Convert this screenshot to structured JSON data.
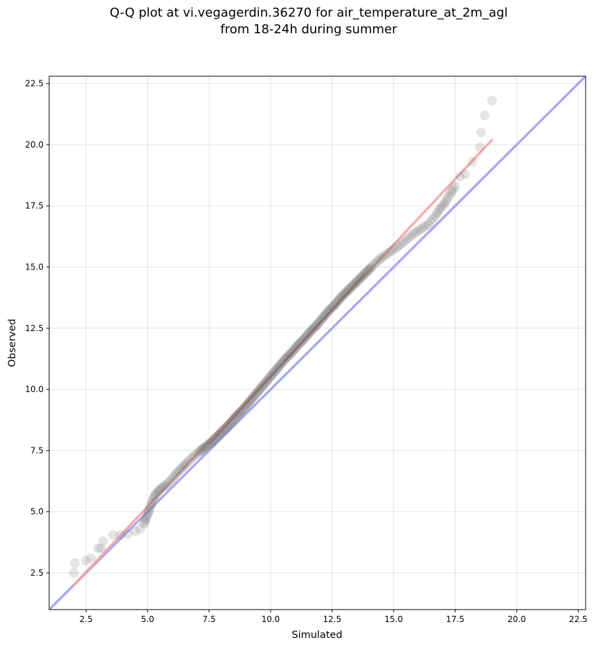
{
  "chart_data": {
    "type": "scatter",
    "title_line1": "Q-Q plot at vi.vegagerdin.36270 for air_temperature_at_2m_agl",
    "title_line2": "from 18-24h during summer",
    "xlabel": "Simulated",
    "ylabel": "Observed",
    "xlim": [
      1.0,
      22.8
    ],
    "ylim": [
      1.0,
      22.8
    ],
    "xticks": [
      2.5,
      5.0,
      7.5,
      10.0,
      12.5,
      15.0,
      17.5,
      20.0,
      22.5
    ],
    "yticks": [
      2.5,
      5.0,
      7.5,
      10.0,
      12.5,
      15.0,
      17.5,
      20.0,
      22.5
    ],
    "xtick_labels": [
      "2.5",
      "5.0",
      "7.5",
      "10.0",
      "12.5",
      "15.0",
      "17.5",
      "20.0",
      "22.5"
    ],
    "ytick_labels": [
      "2.5",
      "5.0",
      "7.5",
      "10.0",
      "12.5",
      "15.0",
      "17.5",
      "20.0",
      "22.5"
    ],
    "grid": true,
    "reference_line": {
      "name": "1:1",
      "x": [
        1.0,
        22.8
      ],
      "y": [
        1.0,
        22.8
      ],
      "color": "#a8a8f5"
    },
    "fit_line": {
      "x": [
        2.0,
        19.0
      ],
      "y": [
        2.0,
        20.2
      ],
      "color": "#f5a3a3"
    },
    "points_color": "#777777",
    "points": [
      [
        2.0,
        2.5
      ],
      [
        2.05,
        2.9
      ],
      [
        2.5,
        3.0
      ],
      [
        2.7,
        3.1
      ],
      [
        3.0,
        3.5
      ],
      [
        3.1,
        3.5
      ],
      [
        3.2,
        3.8
      ],
      [
        3.6,
        4.05
      ],
      [
        3.9,
        4.05
      ],
      [
        4.2,
        4.1
      ],
      [
        4.5,
        4.2
      ],
      [
        4.7,
        4.3
      ],
      [
        4.85,
        4.5
      ],
      [
        4.95,
        4.75
      ],
      [
        5.05,
        5.0
      ],
      [
        5.15,
        5.3
      ],
      [
        5.25,
        5.6
      ],
      [
        5.4,
        5.8
      ],
      [
        5.55,
        5.95
      ],
      [
        5.75,
        6.1
      ],
      [
        6.0,
        6.35
      ],
      [
        6.2,
        6.6
      ],
      [
        6.4,
        6.8
      ],
      [
        6.6,
        7.0
      ],
      [
        6.85,
        7.25
      ],
      [
        7.1,
        7.45
      ],
      [
        7.35,
        7.65
      ],
      [
        7.6,
        7.85
      ],
      [
        7.85,
        8.1
      ],
      [
        8.1,
        8.35
      ],
      [
        8.35,
        8.6
      ],
      [
        8.6,
        8.9
      ],
      [
        8.85,
        9.15
      ],
      [
        9.1,
        9.45
      ],
      [
        9.35,
        9.75
      ],
      [
        9.6,
        10.05
      ],
      [
        9.85,
        10.35
      ],
      [
        10.1,
        10.65
      ],
      [
        10.35,
        10.95
      ],
      [
        10.6,
        11.25
      ],
      [
        10.85,
        11.5
      ],
      [
        11.1,
        11.8
      ],
      [
        11.35,
        12.05
      ],
      [
        11.6,
        12.35
      ],
      [
        11.85,
        12.6
      ],
      [
        12.1,
        12.9
      ],
      [
        12.35,
        13.2
      ],
      [
        12.6,
        13.45
      ],
      [
        12.85,
        13.75
      ],
      [
        13.1,
        14.0
      ],
      [
        13.35,
        14.25
      ],
      [
        13.6,
        14.5
      ],
      [
        13.85,
        14.75
      ],
      [
        14.1,
        15.0
      ],
      [
        14.35,
        15.25
      ],
      [
        14.6,
        15.45
      ],
      [
        14.9,
        15.65
      ],
      [
        15.2,
        15.85
      ],
      [
        15.5,
        16.1
      ],
      [
        15.8,
        16.35
      ],
      [
        16.1,
        16.55
      ],
      [
        16.4,
        16.75
      ],
      [
        16.7,
        17.1
      ],
      [
        16.9,
        17.4
      ],
      [
        17.1,
        17.65
      ],
      [
        17.3,
        18.0
      ],
      [
        17.5,
        18.3
      ],
      [
        17.7,
        18.7
      ],
      [
        17.9,
        18.8
      ],
      [
        18.2,
        19.3
      ],
      [
        18.5,
        19.9
      ],
      [
        18.55,
        20.5
      ],
      [
        18.7,
        21.2
      ],
      [
        19.0,
        21.8
      ]
    ]
  }
}
